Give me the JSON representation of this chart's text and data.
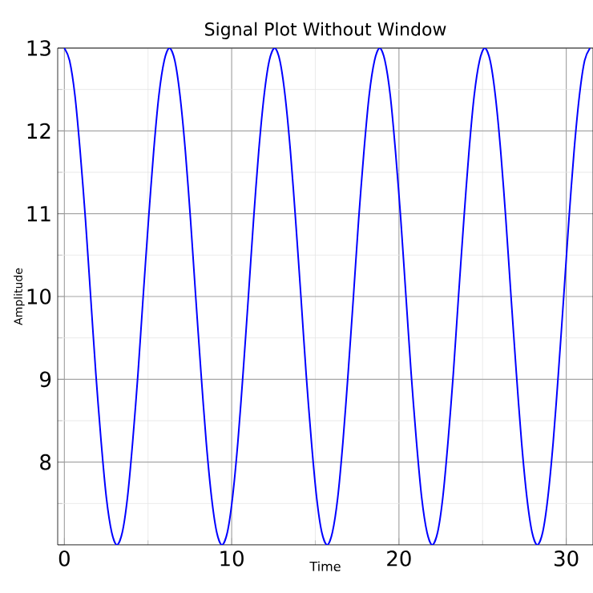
{
  "chart_data": {
    "type": "line",
    "title": "Signal Plot Without Window",
    "xlabel": "Time",
    "ylabel": "Amplitude",
    "xlim": [
      -0.4,
      31.6
    ],
    "ylim": [
      7,
      13
    ],
    "xticks": [
      0,
      10,
      20,
      30
    ],
    "yticks": [
      {
        "value": 7,
        "label": null
      },
      8,
      9,
      10,
      11,
      12,
      13
    ],
    "grid": true,
    "x": [
      0,
      0.31,
      0.63,
      0.94,
      1.26,
      1.57,
      1.88,
      2.2,
      2.51,
      2.83,
      3.14,
      3.46,
      3.77,
      4.08,
      4.4,
      4.71,
      5.03,
      5.34,
      5.65,
      5.97,
      6.28,
      6.6,
      6.91,
      7.23,
      7.54,
      7.85,
      8.17,
      8.48,
      8.8,
      9.11,
      9.42,
      9.74,
      10.05,
      10.37,
      10.68,
      11,
      11.31,
      11.62,
      11.94,
      12.25,
      12.57,
      12.88,
      13.19,
      13.51,
      13.82,
      14.14,
      14.45,
      14.77,
      15.08,
      15.39,
      15.71,
      16.02,
      16.34,
      16.65,
      16.96,
      17.28,
      17.59,
      17.91,
      18.22,
      18.54,
      18.85,
      19.16,
      19.48,
      19.79,
      20.11,
      20.42,
      20.73,
      21.05,
      21.36,
      21.68,
      21.99,
      22.31,
      22.62,
      22.93,
      23.25,
      23.56,
      23.88,
      24.19,
      24.5,
      24.82,
      25.13,
      25.45,
      25.76,
      26.08,
      26.39,
      26.7,
      27.02,
      27.33,
      27.65,
      27.96,
      28.27,
      28.59,
      28.9,
      29.22,
      29.53,
      29.85,
      30.16,
      30.47,
      30.79,
      31.1,
      31.42
    ],
    "series": [
      {
        "color": "#0000ff",
        "values": [
          13,
          12.85,
          12.43,
          11.76,
          10.93,
          10,
          9.07,
          8.24,
          7.57,
          7.15,
          7,
          7.15,
          7.57,
          8.24,
          9.07,
          10,
          10.93,
          11.76,
          12.43,
          12.85,
          13,
          12.85,
          12.43,
          11.76,
          10.93,
          10,
          9.07,
          8.24,
          7.57,
          7.15,
          7,
          7.15,
          7.57,
          8.24,
          9.07,
          10,
          10.93,
          11.76,
          12.43,
          12.85,
          13,
          12.85,
          12.43,
          11.76,
          10.93,
          10,
          9.07,
          8.24,
          7.57,
          7.15,
          7,
          7.15,
          7.57,
          8.24,
          9.07,
          10,
          10.93,
          11.76,
          12.43,
          12.85,
          13,
          12.85,
          12.43,
          11.76,
          10.93,
          10,
          9.07,
          8.24,
          7.57,
          7.15,
          7,
          7.15,
          7.57,
          8.24,
          9.07,
          10,
          10.93,
          11.76,
          12.43,
          12.85,
          13,
          12.85,
          12.43,
          11.76,
          10.93,
          10,
          9.07,
          8.24,
          7.57,
          7.15,
          7,
          7.15,
          7.57,
          8.24,
          9.07,
          10,
          10.93,
          11.76,
          12.43,
          12.85,
          13
        ]
      }
    ]
  }
}
